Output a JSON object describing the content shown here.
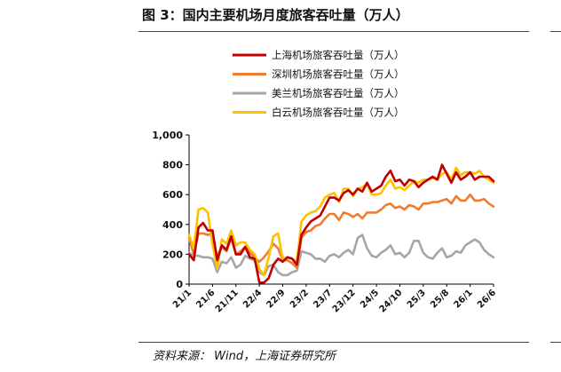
{
  "figure": {
    "title": "图 3：国内主要机场月度旅客吞吐量（万人）",
    "source": "资料来源：  Wind，上海证券研究所"
  },
  "chart_data": {
    "type": "line",
    "title": "",
    "xlabel": "",
    "ylabel": "",
    "ylim": [
      0,
      1000
    ],
    "yticks": [
      0,
      200,
      400,
      600,
      800,
      1000
    ],
    "ytick_labels": [
      "0",
      "200",
      "400",
      "600",
      "800",
      "1,000"
    ],
    "x": [
      "21/1",
      "21/2",
      "21/3",
      "21/4",
      "21/5",
      "21/6",
      "21/7",
      "21/8",
      "21/9",
      "21/10",
      "21/11",
      "21/12",
      "22/1",
      "22/2",
      "22/3",
      "22/4",
      "22/5",
      "22/6",
      "22/7",
      "22/8",
      "22/9",
      "22/10",
      "22/11",
      "22/12",
      "23/1",
      "23/2",
      "23/3",
      "23/4",
      "23/5",
      "23/6",
      "23/7",
      "23/8",
      "23/9",
      "23/10",
      "23/11",
      "23/12",
      "24/1",
      "24/2",
      "24/3",
      "24/4",
      "24/5",
      "24/6",
      "24/7",
      "24/8",
      "24/9",
      "24/10",
      "24/11",
      "24/12",
      "25/1",
      "25/2",
      "25/3",
      "25/4",
      "25/5",
      "25/6",
      "25/7",
      "25/8",
      "25/9",
      "25/10",
      "25/11",
      "25/12",
      "26/1",
      "26/2",
      "26/3",
      "26/4",
      "26/5",
      "26/6"
    ],
    "xtick_labels": [
      "21/1",
      "21/6",
      "21/11",
      "22/4",
      "22/9",
      "23/2",
      "23/7",
      "23/12",
      "24/5",
      "24/10",
      "25/3",
      "25/8",
      "26/1",
      "26/6"
    ],
    "legend_position": "top",
    "series": [
      {
        "name": "上海机场旅客吞吐量（万人）",
        "color": "#c00000",
        "values": [
          200,
          160,
          380,
          410,
          360,
          360,
          160,
          260,
          230,
          320,
          200,
          200,
          250,
          180,
          170,
          10,
          10,
          40,
          130,
          170,
          150,
          180,
          170,
          130,
          330,
          380,
          420,
          440,
          460,
          520,
          580,
          580,
          560,
          610,
          630,
          600,
          640,
          620,
          680,
          620,
          640,
          660,
          720,
          760,
          690,
          700,
          660,
          700,
          690,
          650,
          680,
          700,
          720,
          700,
          800,
          740,
          680,
          750,
          700,
          720,
          750,
          700,
          720,
          720,
          720,
          690
        ]
      },
      {
        "name": "深圳机场旅客吞吐量（万人）",
        "color": "#ed7d31",
        "values": [
          310,
          200,
          340,
          340,
          330,
          340,
          180,
          250,
          220,
          310,
          200,
          220,
          250,
          210,
          180,
          150,
          180,
          220,
          270,
          240,
          160,
          160,
          140,
          110,
          310,
          350,
          360,
          390,
          400,
          440,
          470,
          470,
          430,
          480,
          470,
          450,
          470,
          440,
          480,
          480,
          480,
          500,
          530,
          540,
          510,
          520,
          500,
          530,
          520,
          500,
          540,
          540,
          550,
          550,
          560,
          570,
          540,
          590,
          560,
          560,
          600,
          560,
          560,
          570,
          540,
          520
        ]
      },
      {
        "name": "美兰机场旅客吞吐量（万人）",
        "color": "#a6a6a6",
        "values": [
          210,
          190,
          190,
          180,
          180,
          170,
          80,
          150,
          140,
          180,
          110,
          130,
          190,
          170,
          160,
          80,
          60,
          120,
          130,
          80,
          60,
          60,
          80,
          90,
          220,
          210,
          200,
          170,
          170,
          150,
          190,
          200,
          180,
          210,
          230,
          200,
          310,
          330,
          240,
          190,
          180,
          210,
          230,
          260,
          200,
          210,
          180,
          210,
          290,
          290,
          210,
          180,
          170,
          210,
          240,
          180,
          190,
          220,
          210,
          260,
          280,
          300,
          280,
          230,
          200,
          180
        ]
      },
      {
        "name": "白云机场旅客吞吐量（万人）",
        "color": "#ffc000",
        "values": [
          330,
          240,
          500,
          510,
          480,
          270,
          100,
          300,
          270,
          360,
          260,
          280,
          280,
          230,
          200,
          100,
          60,
          180,
          320,
          340,
          170,
          180,
          170,
          150,
          420,
          460,
          480,
          490,
          520,
          580,
          600,
          610,
          550,
          640,
          640,
          590,
          640,
          650,
          670,
          600,
          600,
          610,
          660,
          700,
          640,
          650,
          630,
          660,
          690,
          680,
          700,
          700,
          710,
          700,
          740,
          750,
          700,
          780,
          730,
          750,
          750,
          740,
          760,
          720,
          700,
          680
        ]
      }
    ]
  }
}
